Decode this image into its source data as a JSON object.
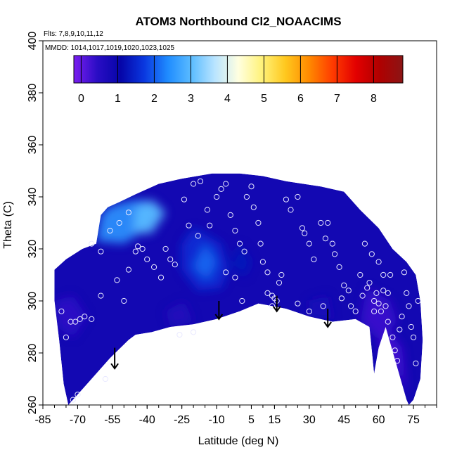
{
  "chart_data": {
    "type": "heatmap",
    "title": "ATOM3 Northbound Cl2_NOAACIMS",
    "flights_note": "Flts: 7,8,9,10,11,12",
    "dates_note": "MMDD: 1014,1017,1019,1020,1023,1025",
    "xlabel": "Latitude (deg N)",
    "ylabel": "Theta (C)",
    "xlim": [
      -85,
      85
    ],
    "ylim": [
      260,
      400
    ],
    "x_tick_labels": [
      "-85",
      "-70",
      "-55",
      "-40",
      "-25",
      "-10",
      "5",
      "15",
      "30",
      "45",
      "60",
      "75"
    ],
    "x_tick_values": [
      -85,
      -70,
      -55,
      -40,
      -25,
      -10,
      5,
      15,
      30,
      45,
      60,
      75
    ],
    "y_ticks": [
      260,
      280,
      300,
      320,
      340,
      360,
      380,
      400
    ],
    "colorbar": {
      "ticks": [
        0,
        1,
        2,
        3,
        4,
        5,
        6,
        7,
        8
      ],
      "range": [
        -0.2,
        8.8
      ],
      "colors": [
        "#7a1ef0",
        "#2a0dc4",
        "#0505a8",
        "#0a38e0",
        "#1f8cff",
        "#5bbcff",
        "#b9e4ff",
        "#ffffe0",
        "#fff27a",
        "#ffc81e",
        "#ff8a00",
        "#ff3c00",
        "#e30000",
        "#b00000",
        "#8b1515"
      ]
    },
    "envelope": [
      [
        -74,
        260
      ],
      [
        -76,
        268
      ],
      [
        -78,
        285
      ],
      [
        -80,
        300
      ],
      [
        -80,
        312
      ],
      [
        -75,
        316
      ],
      [
        -68,
        320
      ],
      [
        -62,
        322
      ],
      [
        -60,
        333
      ],
      [
        -57,
        336
      ],
      [
        -52,
        338
      ],
      [
        -45,
        341
      ],
      [
        -35,
        345
      ],
      [
        -25,
        347
      ],
      [
        -12,
        349
      ],
      [
        0,
        349
      ],
      [
        10,
        348
      ],
      [
        20,
        346
      ],
      [
        35,
        344
      ],
      [
        45,
        342
      ],
      [
        52,
        335
      ],
      [
        60,
        328
      ],
      [
        66,
        320
      ],
      [
        72,
        315
      ],
      [
        76,
        310
      ],
      [
        78,
        300
      ],
      [
        79,
        285
      ],
      [
        78,
        270
      ],
      [
        75,
        262
      ],
      [
        73,
        260
      ],
      [
        72,
        262
      ],
      [
        63,
        290
      ],
      [
        60,
        282
      ],
      [
        58,
        272
      ],
      [
        56,
        290
      ],
      [
        50,
        293
      ],
      [
        40,
        292
      ],
      [
        30,
        294
      ],
      [
        20,
        297
      ],
      [
        8,
        299
      ],
      [
        0,
        296
      ],
      [
        -10,
        293
      ],
      [
        -20,
        291
      ],
      [
        -30,
        290
      ],
      [
        -38,
        288
      ],
      [
        -45,
        287
      ],
      [
        -48,
        285
      ],
      [
        -56,
        278
      ],
      [
        -65,
        269
      ],
      [
        -74,
        260
      ]
    ],
    "field_regions": [
      {
        "poly": [
          [
            -62,
            323
          ],
          [
            -60,
            333
          ],
          [
            -57,
            336
          ],
          [
            -50,
            338
          ],
          [
            -42,
            339
          ],
          [
            -35,
            335
          ],
          [
            -40,
            328
          ],
          [
            -50,
            322
          ]
        ],
        "value": 2.5
      },
      {
        "poly": [
          [
            -45,
            336
          ],
          [
            -38,
            339
          ],
          [
            -32,
            334
          ],
          [
            -38,
            326
          ],
          [
            -46,
            326
          ]
        ],
        "value": 3.0
      },
      {
        "poly": [
          [
            -20,
            328
          ],
          [
            -8,
            322
          ],
          [
            -5,
            312
          ],
          [
            -8,
            305
          ],
          [
            -18,
            304
          ],
          [
            -25,
            312
          ],
          [
            -25,
            322
          ]
        ],
        "value": 1.6
      },
      {
        "poly": [
          [
            -15,
            322
          ],
          [
            -10,
            315
          ],
          [
            -14,
            308
          ],
          [
            -20,
            313
          ]
        ],
        "value": 2.1
      },
      {
        "poly": [
          [
            0,
            322
          ],
          [
            5,
            315
          ],
          [
            2,
            309
          ],
          [
            -4,
            314
          ]
        ],
        "value": 1.3
      },
      {
        "poly": [
          [
            55,
            305
          ],
          [
            65,
            300
          ],
          [
            68,
            292
          ],
          [
            60,
            285
          ],
          [
            52,
            292
          ]
        ],
        "value": 0.3
      },
      {
        "poly": [
          [
            -80,
            300
          ],
          [
            -72,
            302
          ],
          [
            -66,
            294
          ],
          [
            -72,
            286
          ],
          [
            -79,
            290
          ]
        ],
        "value": 0.4
      },
      {
        "poly": [
          [
            60,
            282
          ],
          [
            63,
            290
          ],
          [
            70,
            282
          ],
          [
            72,
            264
          ],
          [
            68,
            272
          ]
        ],
        "value": 0.2
      },
      {
        "poly": [
          [
            -30,
            290
          ],
          [
            -20,
            292
          ],
          [
            -24,
            300
          ],
          [
            -32,
            296
          ]
        ],
        "value": 0.6
      },
      {
        "poly": [
          [
            30,
            294
          ],
          [
            40,
            293
          ],
          [
            38,
            302
          ],
          [
            30,
            300
          ]
        ],
        "value": 0.7
      }
    ],
    "arrows": [
      {
        "lat": -54,
        "theta_top": 282,
        "theta_bottom": 274
      },
      {
        "lat": -9,
        "theta_top": 300,
        "theta_bottom": 293
      },
      {
        "lat": 16,
        "theta_top": 302,
        "theta_bottom": 296
      },
      {
        "lat": 38,
        "theta_top": 297,
        "theta_bottom": 290
      }
    ],
    "points": [
      [
        -77,
        296
      ],
      [
        -75,
        286
      ],
      [
        -73,
        292
      ],
      [
        -71,
        292
      ],
      [
        -69,
        293
      ],
      [
        -72,
        262
      ],
      [
        -70,
        264
      ],
      [
        -67,
        294
      ],
      [
        -64,
        293
      ],
      [
        -60,
        302
      ],
      [
        -58,
        270
      ],
      [
        -53,
        308
      ],
      [
        -50,
        300
      ],
      [
        -48,
        312
      ],
      [
        -45,
        319
      ],
      [
        -44,
        321
      ],
      [
        -42,
        320
      ],
      [
        -40,
        316
      ],
      [
        -37,
        313
      ],
      [
        -34,
        309
      ],
      [
        -32,
        320
      ],
      [
        -30,
        316
      ],
      [
        -28,
        314
      ],
      [
        -26,
        287
      ],
      [
        -20,
        288
      ],
      [
        -22,
        329
      ],
      [
        -18,
        325
      ],
      [
        -14,
        335
      ],
      [
        -13,
        329
      ],
      [
        -10,
        340
      ],
      [
        -8,
        343
      ],
      [
        -6,
        345
      ],
      [
        -4,
        333
      ],
      [
        -2,
        327
      ],
      [
        0,
        322
      ],
      [
        2,
        319
      ],
      [
        3,
        340
      ],
      [
        5,
        344
      ],
      [
        6,
        336
      ],
      [
        8,
        330
      ],
      [
        9,
        322
      ],
      [
        10,
        315
      ],
      [
        12,
        311
      ],
      [
        12,
        303
      ],
      [
        14,
        298
      ],
      [
        14,
        302
      ],
      [
        15,
        301
      ],
      [
        16,
        300
      ],
      [
        17,
        307
      ],
      [
        18,
        310
      ],
      [
        20,
        339
      ],
      [
        22,
        335
      ],
      [
        25,
        340
      ],
      [
        27,
        328
      ],
      [
        28,
        326
      ],
      [
        30,
        322
      ],
      [
        30,
        296
      ],
      [
        32,
        316
      ],
      [
        35,
        330
      ],
      [
        37,
        324
      ],
      [
        38,
        330
      ],
      [
        40,
        322
      ],
      [
        41,
        318
      ],
      [
        43,
        313
      ],
      [
        45,
        306
      ],
      [
        47,
        304
      ],
      [
        48,
        298
      ],
      [
        50,
        296
      ],
      [
        52,
        310
      ],
      [
        53,
        302
      ],
      [
        55,
        305
      ],
      [
        56,
        307
      ],
      [
        58,
        300
      ],
      [
        58,
        296
      ],
      [
        59,
        303
      ],
      [
        60,
        299
      ],
      [
        61,
        296
      ],
      [
        62,
        310
      ],
      [
        62,
        304
      ],
      [
        63,
        298
      ],
      [
        64,
        303
      ],
      [
        64,
        292
      ],
      [
        65,
        310
      ],
      [
        66,
        286
      ],
      [
        67,
        281
      ],
      [
        68,
        277
      ],
      [
        69,
        289
      ],
      [
        70,
        294
      ],
      [
        71,
        311
      ],
      [
        72,
        303
      ],
      [
        73,
        298
      ],
      [
        74,
        290
      ],
      [
        75,
        286
      ],
      [
        76,
        276
      ],
      [
        77,
        300
      ],
      [
        -64,
        322
      ],
      [
        -60,
        319
      ],
      [
        -56,
        327
      ],
      [
        -52,
        330
      ],
      [
        -48,
        334
      ],
      [
        -24,
        339
      ],
      [
        -20,
        345
      ],
      [
        -17,
        346
      ],
      [
        25,
        299
      ],
      [
        36,
        298
      ],
      [
        44,
        301
      ],
      [
        1,
        300
      ],
      [
        -6,
        311
      ],
      [
        -2,
        309
      ],
      [
        54,
        322
      ],
      [
        57,
        318
      ],
      [
        60,
        315
      ]
    ]
  }
}
